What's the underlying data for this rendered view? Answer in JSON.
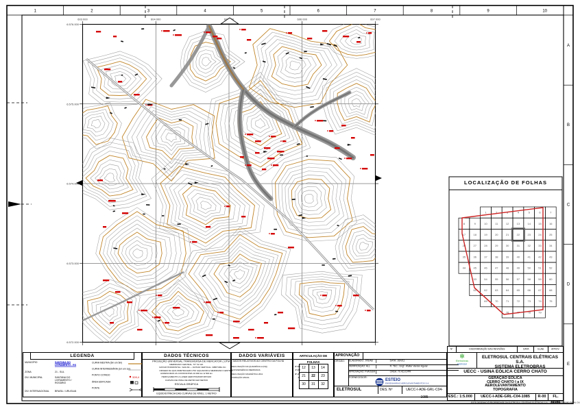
{
  "page": {
    "rulers": {
      "top": [
        "1",
        "2",
        "3",
        "4",
        "5",
        "6",
        "7",
        "8",
        "9",
        "10"
      ],
      "right": [
        "A",
        "B",
        "C",
        "D",
        "E"
      ]
    }
  },
  "map": {
    "grid_labels_top": [
      "603.000",
      "604.000",
      "605.000",
      "606.000",
      "607.000"
    ],
    "grid_labels_left": [
      "6.576.000",
      "6.575.000",
      "6.574.000",
      "6.573.000",
      "6.572.000"
    ],
    "colors": {
      "contour_master": "#c08428",
      "contour_intermediate": "#9c9c9c",
      "spot_elevation": "#d40000",
      "road": "#9a9a9a"
    }
  },
  "legend": {
    "title": "LEGENDA",
    "fields": [
      {
        "label": "MUNICÍPIO",
        "value": "SANTANA DO LIVRAMENTO - RS",
        "blue": true
      },
      {
        "label": "ZONA",
        "value": "21 - SUL",
        "blue": false
      },
      {
        "label": "DIV. MUNICIPAL",
        "value": "SANTANA DO LIVRAMENTO / ROSÁRIO",
        "blue": false
      },
      {
        "label": "DIV. INTERNACIONAL",
        "value": "BRASIL / URUGUAI",
        "blue": false
      }
    ],
    "symbols": [
      {
        "label": "CURVA MESTRA (5m em 5m)",
        "type": "master"
      },
      {
        "label": "CURVA INTERMEDIÁRIA (1m em 1m)",
        "type": "inter"
      },
      {
        "label": "PONTO COTADO",
        "type": "spot"
      },
      {
        "label": "ÁREA EDIFICADA",
        "type": "built"
      },
      {
        "label": "PONTE",
        "type": "bridge"
      }
    ]
  },
  "dados_tecnicos": {
    "title": "DADOS TÉCNICOS",
    "lines": [
      "PROJEÇÃO UNIVERSAL TRANSVERSA DE MERCATOR ( UTM )",
      "MERIDIANO CENTRAL: 57° W GR.",
      "DATUM HORIZONTAL: SAD-69 — DATUM VERTICAL: IMBITUBA-SC",
      "ORIGEM DA QUILOMETRAGEM UTM: EQUADOR E MERIDIANO CENTRAL",
      "ACRESCIDAS AS CONSTANTES 10.000 km E 500 km",
      "PERFILAMENTO A LASER AEROTRANSPORTADO",
      "CURVAS DE NÍVEL DE METRO EM METRO"
    ],
    "escala_grafica_label": "ESCALA GRÁFICA",
    "nota": "EQÜIDISTÂNCIA DAS CURVAS DE NÍVEL: 1 METRO"
  },
  "dados_variaveis": {
    "title": "DADOS VARIÁVEIS",
    "subtitle": "DADOS RELATIVOS AO CENTRO DA FOLHA",
    "north_labels": [
      "NQ",
      "NM"
    ],
    "lines": [
      {
        "label": "DECLINAÇÃO DA QUADRÍCULA (NQ)",
        "value": "0°-52'"
      },
      {
        "label": "CONVERGÊNCIA MERIDIANA",
        "value": "1°-08'"
      },
      {
        "label": "DECLINAÇÃO MAGNÉTICA 2011",
        "value": "9°-47'"
      },
      {
        "label": "VARIAÇÃO ANUAL",
        "value": "-8'"
      }
    ]
  },
  "articulacao": {
    "title": "ARTICULAÇÃO DE FOLHAS",
    "grid": [
      [
        "12",
        "13",
        "14"
      ],
      [
        "21",
        "22",
        "23"
      ],
      [
        "30",
        "31",
        "32"
      ]
    ]
  },
  "aprovacao": {
    "title": "APROVAÇÃO",
    "orgao_label": "ÓRGÃO:",
    "rows": [
      [
        "ELABORADO: JVS/AB",
        "DATA: JUN/11"
      ],
      [
        "VERIFICAÇÃO: ALL",
        "R. TÉC.: Engº. Walter Vander Aguiar"
      ],
      [
        "APROVAÇÃO: FVA/SUM",
        "CREA: 70.411-D/PR"
      ]
    ],
    "fornecedor_label": "FORNECEDOR:",
    "fornecedor_nome": "ESTEIO",
    "fornecedor_sub": "ENGENHARIA E AEROLEVANTAMENTOS S.A.",
    "empresa": "ELETROSUL",
    "des_label": "DES. Nº",
    "des_numero": "UECC-I-ADE-GRL-C04-1085"
  },
  "localizacao": {
    "title": "LOCALIZAÇÃO DE FOLHAS",
    "grid_rows": [
      [
        null,
        null,
        "1",
        "2",
        "3",
        "4",
        "5",
        "6",
        "7"
      ],
      [
        "8",
        "9",
        "10",
        "11",
        "12",
        "13",
        "14",
        "15",
        "16"
      ],
      [
        "17",
        "18",
        "19",
        "20",
        "21",
        "22",
        "23",
        "24",
        "25"
      ],
      [
        "26",
        "27",
        "28",
        "29",
        "30",
        "31",
        "32",
        "33",
        "34"
      ],
      [
        "35",
        "36",
        "37",
        "38",
        "39",
        "40",
        "41",
        "42",
        "43"
      ],
      [
        "44",
        "45",
        "46",
        "47",
        "48",
        "49",
        "50",
        "51",
        "52"
      ],
      [
        null,
        "53",
        "54",
        "55",
        "56",
        "57",
        "58",
        "59",
        "60"
      ],
      [
        null,
        "61",
        "62",
        "63",
        "64",
        "65",
        "66",
        "67",
        "68"
      ],
      [
        null,
        null,
        "69",
        "70",
        "71",
        "72",
        "73",
        "74",
        "75"
      ],
      [
        null,
        null,
        null,
        null,
        "76",
        "77",
        "78",
        "79",
        null
      ]
    ],
    "highlight": {
      "row": 2,
      "col": 5
    },
    "boundary_color": "#cc2222"
  },
  "title_block": {
    "revision_header": [
      "Nº",
      "DISCRIMINAÇÃO DAS REVISÕES",
      "DATA",
      "ELAB.",
      "APROV."
    ],
    "logo_text_1": "Eletrobras",
    "logo_text_2": "Eletrosul",
    "company_line1": "ELETROSUL CENTRAIS ELÉTRICAS S.A.",
    "company_line2": "SISTEMA ELETROBRAS",
    "project": "UECC  -  USINA EÓLICA CERRO CHATO",
    "subject_lines": [
      "GERAÇÃO EÓLICA",
      "CERRO CHATO I a IX",
      "AEROLEVANTAMENTO",
      "TOPOGRAFIA"
    ],
    "esc": "ESC.: 1:5.000",
    "des_numero": "UECC-I-ADE-GRL-C04-1085",
    "rev": "R-00",
    "folha": "FL. 86/86",
    "fineprint": "ESTE DESENHO É PROPRIEDADE DA ELETROSUL CENTRAIS ELÉTRICAS S.A. - SUA REPRODUÇÃO TOTAL OU PARCIAL DEPENDE DE AUTORIZAÇÃO EXPRESSA"
  }
}
